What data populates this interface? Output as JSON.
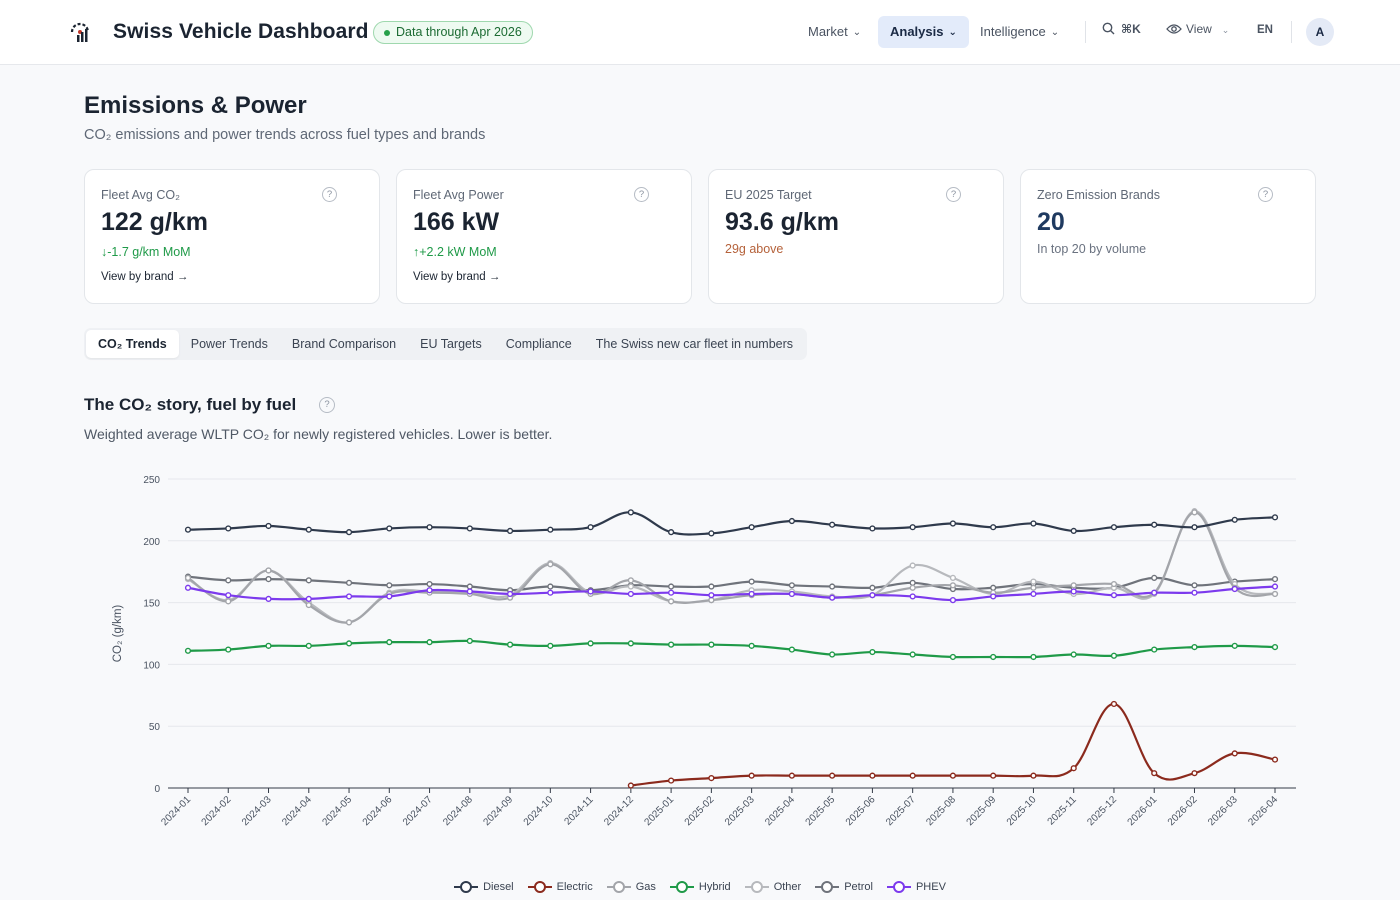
{
  "header": {
    "app_title": "Swiss Vehicle Dashboard",
    "data_badge": "Data through Apr 2026",
    "nav": [
      {
        "label": "Market",
        "active": false
      },
      {
        "label": "Analysis",
        "active": true
      },
      {
        "label": "Intelligence",
        "active": false
      }
    ],
    "search_shortcut": "⌘K",
    "view_label": "View",
    "language": "EN",
    "avatar_initial": "A"
  },
  "page": {
    "title": "Emissions & Power",
    "subtitle": "CO₂ emissions and power trends across fuel types and brands"
  },
  "kpis": [
    {
      "label": "Fleet Avg CO₂",
      "value": "122 g/km",
      "delta": "-1.7 g/km MoM",
      "direction": "down",
      "link": "View by brand"
    },
    {
      "label": "Fleet Avg Power",
      "value": "166 kW",
      "delta": "+2.2 kW MoM",
      "direction": "up",
      "link": "View by brand"
    },
    {
      "label": "EU 2025 Target",
      "value": "93.6 g/km",
      "note": "29g above"
    },
    {
      "label": "Zero Emission Brands",
      "value": "20",
      "note": "In top 20 by volume"
    }
  ],
  "tabs": [
    {
      "label": "CO₂ Trends",
      "active": true
    },
    {
      "label": "Power Trends",
      "active": false
    },
    {
      "label": "Brand Comparison",
      "active": false
    },
    {
      "label": "EU Targets",
      "active": false
    },
    {
      "label": "Compliance",
      "active": false
    },
    {
      "label": "The Swiss new car fleet in numbers",
      "active": false
    }
  ],
  "section": {
    "title": "The CO₂ story, fuel by fuel",
    "subtitle": "Weighted average WLTP CO₂ for newly registered vehicles. Lower is better."
  },
  "colors": {
    "Diesel": "#2f3a4c",
    "Electric": "#8b2a1d",
    "Gas": "#a3a5aa",
    "Hybrid": "#1f9a48",
    "Other": "#b7b9bd",
    "Petrol": "#6f737b",
    "PHEV": "#7c3aed"
  },
  "chart_data": {
    "type": "line",
    "ylabel": "CO₂ (g/km)",
    "ylim": [
      0,
      250
    ],
    "yticks": [
      0,
      50,
      100,
      150,
      200,
      250
    ],
    "grid": true,
    "legend_position": "bottom-center",
    "x": [
      "2024-01",
      "2024-02",
      "2024-03",
      "2024-04",
      "2024-05",
      "2024-06",
      "2024-07",
      "2024-08",
      "2024-09",
      "2024-10",
      "2024-11",
      "2024-12",
      "2025-01",
      "2025-02",
      "2025-03",
      "2025-04",
      "2025-05",
      "2025-06",
      "2025-07",
      "2025-08",
      "2025-09",
      "2025-10",
      "2025-11",
      "2025-12",
      "2026-01",
      "2026-02",
      "2026-03",
      "2026-04"
    ],
    "series": [
      {
        "name": "Diesel",
        "values": [
          209,
          210,
          212,
          209,
          207,
          210,
          211,
          210,
          208,
          209,
          211,
          223,
          207,
          206,
          211,
          216,
          213,
          210,
          211,
          214,
          211,
          214,
          208,
          211,
          213,
          211,
          217,
          219
        ]
      },
      {
        "name": "Electric",
        "values": [
          null,
          null,
          null,
          null,
          null,
          null,
          null,
          null,
          null,
          null,
          null,
          2,
          6,
          8,
          10,
          10,
          10,
          10,
          10,
          10,
          10,
          10,
          16,
          68,
          12,
          12,
          28,
          23
        ]
      },
      {
        "name": "Gas",
        "values": [
          170,
          151,
          176,
          148,
          134,
          157,
          158,
          157,
          154,
          181,
          157,
          168,
          151,
          152,
          156,
          157,
          154,
          156,
          162,
          164,
          158,
          162,
          164,
          165,
          158,
          223,
          162,
          157
        ]
      },
      {
        "name": "Hybrid",
        "values": [
          111,
          112,
          115,
          115,
          117,
          118,
          118,
          119,
          116,
          115,
          117,
          117,
          116,
          116,
          115,
          112,
          108,
          110,
          108,
          106,
          106,
          106,
          108,
          107,
          112,
          114,
          115,
          114
        ]
      },
      {
        "name": "Other",
        "values": [
          169,
          152,
          176,
          150,
          134,
          158,
          159,
          158,
          156,
          182,
          158,
          163,
          151,
          152,
          160,
          159,
          155,
          156,
          180,
          170,
          157,
          167,
          157,
          162,
          157,
          224,
          165,
          157
        ]
      },
      {
        "name": "Petrol",
        "values": [
          171,
          168,
          169,
          168,
          166,
          164,
          165,
          163,
          160,
          163,
          160,
          164,
          163,
          163,
          167,
          164,
          163,
          162,
          166,
          161,
          162,
          165,
          162,
          162,
          170,
          164,
          167,
          169
        ]
      },
      {
        "name": "PHEV",
        "values": [
          162,
          156,
          153,
          153,
          155,
          155,
          160,
          159,
          157,
          158,
          159,
          157,
          158,
          156,
          157,
          157,
          154,
          156,
          155,
          152,
          155,
          157,
          159,
          156,
          158,
          158,
          161,
          163
        ]
      }
    ]
  }
}
